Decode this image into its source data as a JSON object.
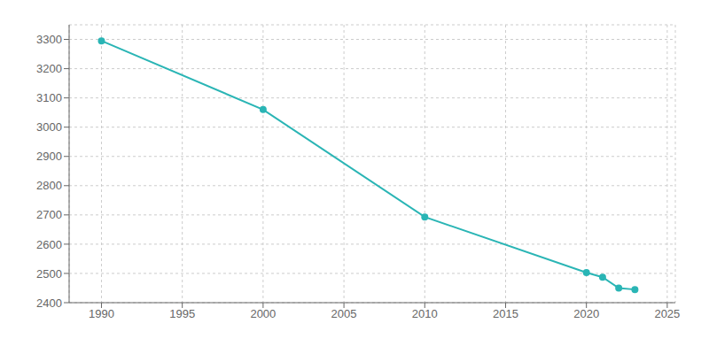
{
  "chart_data": {
    "type": "line",
    "x": [
      1990,
      2000,
      2010,
      2020,
      2021,
      2022,
      2023
    ],
    "values": [
      3295,
      3060,
      2693,
      2503,
      2487,
      2450,
      2445
    ],
    "color": "#2ab5b5",
    "marker": "circle",
    "xlim": [
      1988,
      2025.5
    ],
    "xticks": [
      1990,
      1995,
      2000,
      2005,
      2010,
      2015,
      2020,
      2025
    ],
    "ylim": [
      2400,
      3350
    ],
    "yticks": [
      2400,
      2500,
      2600,
      2700,
      2800,
      2900,
      3000,
      3100,
      3200,
      3300
    ],
    "grid": true
  }
}
